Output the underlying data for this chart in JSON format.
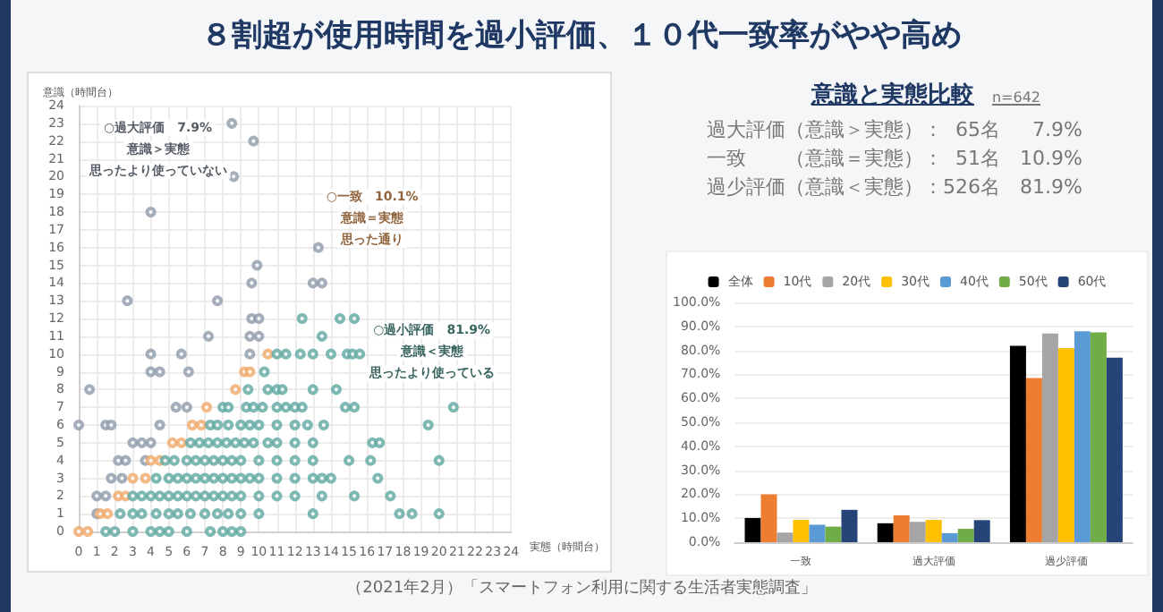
{
  "chart_data": [
    {
      "type": "scatter",
      "title": "８割超が使用時間を過小評価、１０代一致率がやや高め",
      "xlabel": "実態（時間台）",
      "ylabel": "意識（時間台）",
      "xlim": [
        0,
        24
      ],
      "ylim": [
        0,
        24
      ],
      "xticks": [
        0,
        1,
        2,
        3,
        4,
        5,
        6,
        7,
        8,
        9,
        10,
        11,
        12,
        13,
        14,
        15,
        16,
        17,
        18,
        19,
        20,
        21,
        22,
        23,
        24
      ],
      "yticks": [
        0,
        1,
        2,
        3,
        4,
        5,
        6,
        7,
        8,
        9,
        10,
        11,
        12,
        13,
        14,
        15,
        16,
        17,
        18,
        19,
        20,
        21,
        22,
        23,
        24
      ],
      "grid": true,
      "marker": "circle",
      "series": [
        {
          "color": "#8f9bab",
          "x": [
            8.5,
            9.7,
            8.6,
            4,
            2.7,
            7.7,
            13.3,
            9.9,
            9.6,
            13,
            13.5,
            9.6,
            10,
            7.2,
            9.5,
            10,
            4,
            5.7,
            9.5,
            4,
            4.5,
            6.1,
            0.6,
            5.4,
            6,
            0,
            1.5,
            1.8,
            4.5,
            3,
            3.5,
            4,
            2.2,
            2.6,
            3.7,
            1.8,
            2.4,
            1,
            1.5,
            1
          ],
          "values": [
            23,
            22,
            20,
            18,
            13,
            13,
            16,
            15,
            14,
            14,
            14,
            12,
            12,
            11,
            11,
            11,
            10,
            10,
            10,
            9,
            9,
            9,
            8,
            7,
            7,
            6,
            6,
            6,
            6,
            5,
            5,
            5,
            4,
            4,
            4,
            3,
            3,
            2,
            2,
            1
          ]
        },
        {
          "color": "#f0a868",
          "x": [
            0,
            0.5,
            1.2,
            1.6,
            2.2,
            2.6,
            3,
            3.7,
            4,
            4.5,
            5.2,
            5.7,
            6.3,
            6.8,
            7.1,
            8.7,
            9.2,
            9.5,
            10.5
          ],
          "values": [
            0,
            0,
            1,
            1,
            2,
            2,
            3,
            3,
            4,
            4,
            5,
            5,
            6,
            6,
            7,
            8,
            9,
            9,
            10
          ]
        },
        {
          "color": "#5fa8a0",
          "x": [
            1.5,
            2,
            3,
            4,
            4.5,
            5,
            6,
            7.3,
            8,
            8.5,
            9,
            2.3,
            3,
            3.5,
            4.3,
            5,
            5.5,
            6.2,
            7,
            7.7,
            8.3,
            9,
            10,
            13,
            17.8,
            18.5,
            20,
            3,
            3.5,
            4,
            4.5,
            5,
            5.5,
            6,
            6.5,
            7,
            7.5,
            8,
            8.5,
            9,
            10,
            11,
            12,
            13.5,
            15.3,
            17.3,
            4.3,
            5,
            5.5,
            6,
            6.5,
            7,
            7.5,
            8,
            8.5,
            9,
            9.5,
            10,
            11,
            12,
            13,
            13.5,
            14,
            16.6,
            4.8,
            5.3,
            6,
            6.5,
            7,
            7.5,
            8,
            8.5,
            9,
            10,
            11,
            12,
            13,
            15,
            16.2,
            20,
            6.2,
            6.7,
            7.2,
            7.7,
            8.2,
            8.7,
            9.2,
            9.7,
            10.5,
            11,
            12,
            13,
            16.3,
            16.7,
            7.3,
            7.7,
            8.3,
            9,
            9.5,
            10,
            11,
            12,
            12.7,
            13.6,
            19.4,
            8,
            8.3,
            9.3,
            9.7,
            10.2,
            11,
            11.5,
            12,
            12.4,
            14.8,
            15.3,
            20.8,
            9.4,
            10.5,
            11,
            11.3,
            13,
            14.3,
            10.3,
            11,
            11.5,
            12.3,
            13,
            14,
            14.9,
            15.2,
            15.6,
            13.5,
            12.4,
            14.5,
            15.3
          ],
          "values": [
            0,
            0,
            0,
            0,
            0,
            0,
            0,
            0,
            0,
            0,
            0,
            1,
            1,
            1,
            1,
            1,
            1,
            1,
            1,
            1,
            1,
            1,
            1,
            1,
            1,
            1,
            1,
            2,
            2,
            2,
            2,
            2,
            2,
            2,
            2,
            2,
            2,
            2,
            2,
            2,
            2,
            2,
            2,
            2,
            2,
            2,
            3,
            3,
            3,
            3,
            3,
            3,
            3,
            3,
            3,
            3,
            3,
            3,
            3,
            3,
            3,
            3,
            3,
            3,
            4,
            4,
            4,
            4,
            4,
            4,
            4,
            4,
            4,
            4,
            4,
            4,
            4,
            4,
            4,
            4,
            5,
            5,
            5,
            5,
            5,
            5,
            5,
            5,
            5,
            5,
            5,
            5,
            5,
            5,
            6,
            6,
            6,
            6,
            6,
            6,
            6,
            6,
            6,
            6,
            6,
            7,
            7,
            7,
            7,
            7,
            7,
            7,
            7,
            7,
            7,
            7,
            7,
            8,
            8,
            8,
            8,
            8,
            8,
            9,
            10,
            10,
            10,
            10,
            10,
            10,
            10,
            10,
            11,
            12,
            12,
            12
          ]
        }
      ],
      "annotations": [
        "○過大評価　7.9%",
        "意識＞実態",
        "思ったより使っていない",
        "○一致　10.1%",
        "意識＝実態",
        "思った通り",
        "○過小評価　81.9%",
        "意識＜実態",
        "思ったより使っている",
        "（2021年2月）「スマートフォン利用に関する生活者実態調査」"
      ]
    },
    {
      "type": "other",
      "title": "意識と実態比較",
      "subtitle": "n=642",
      "annotations": [
        "過大評価（意識＞実態）：  65名　  7.9%",
        "一致　　（意識＝実態）：  51名　10.9%",
        "過少評価（意識＜実態）：526名　81.9%"
      ]
    },
    {
      "type": "bar",
      "categories": [
        "一致",
        "過大評価",
        "過少評価"
      ],
      "ylim": [
        0,
        100
      ],
      "yticks": [
        {
          "value": 0,
          "label": "0.0%"
        },
        {
          "value": 10,
          "label": "10.0%"
        },
        {
          "value": 20,
          "label": "20.0%"
        },
        {
          "value": 30,
          "label": "30.0%"
        },
        {
          "value": 40,
          "label": "40.0%"
        },
        {
          "value": 50,
          "label": "50.0%"
        },
        {
          "value": 60,
          "label": "60.0%"
        },
        {
          "value": 70,
          "label": "70.0%"
        },
        {
          "value": 80,
          "label": "80.0%"
        },
        {
          "value": 90,
          "label": "90.0%"
        },
        {
          "value": 100,
          "label": "100.0%"
        }
      ],
      "grid": "y",
      "legend": "top",
      "series": [
        {
          "name": "全体",
          "color": "#000000",
          "values": [
            10.1,
            7.9,
            81.9
          ]
        },
        {
          "name": "10代",
          "color": "#ed7d31",
          "values": [
            20,
            11.2,
            68.5
          ]
        },
        {
          "name": "20代",
          "color": "#a5a5a5",
          "values": [
            4,
            8.5,
            87
          ]
        },
        {
          "name": "30代",
          "color": "#ffc000",
          "values": [
            9.3,
            9.3,
            81
          ]
        },
        {
          "name": "40代",
          "color": "#5b9bd5",
          "values": [
            7.3,
            3.8,
            88
          ]
        },
        {
          "name": "50代",
          "color": "#70ad47",
          "values": [
            6.5,
            5.6,
            87.5
          ]
        },
        {
          "name": "60代",
          "color": "#264478",
          "values": [
            13.5,
            9.2,
            77
          ]
        }
      ]
    }
  ]
}
